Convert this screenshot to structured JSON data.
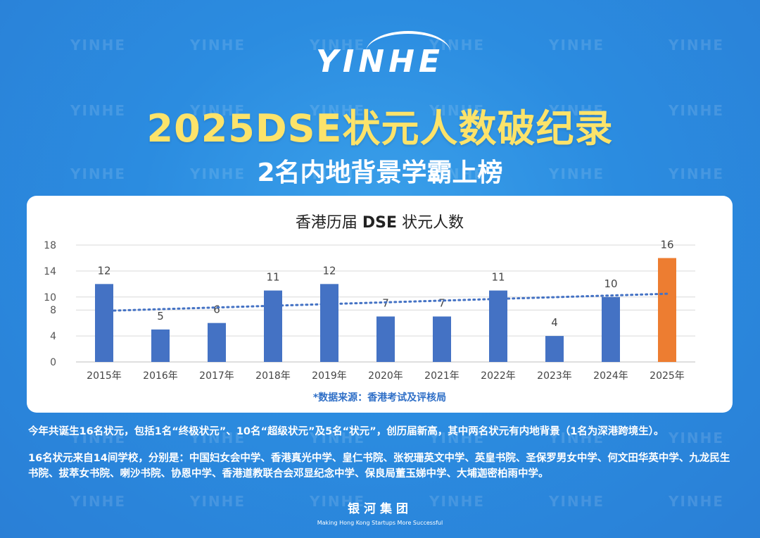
{
  "watermark": "YINHE",
  "logo": "YINHE",
  "title": "2025DSE状元人数破纪录",
  "subtitle": "2名内地背景学霸上榜",
  "chart_title_prefix": "香港历届",
  "chart_title_bold": "DSE",
  "chart_title_suffix": "状元人数",
  "source": "*数据来源：香港考试及评核局",
  "description_1": "今年共诞生16名状元，包括1名“终极状元”、10名“超级状元”及5名“状元”，创历届新高，其中两名状元有内地背景（1名为深港跨境生）。",
  "description_2": "16名状元来自14间学校，分别是：中国妇女会中学、香港真光中学、皇仁书院、张祝珊英文中学、英皇书院、圣保罗男女中学、何文田华英中学、九龙民生书院、拔萃女书院、喇沙书院、协恩中学、香港道教联合会邓显纪念中学、保良局董玉娣中学、大埔迦密柏雨中学。",
  "footer_name": "银河集团",
  "footer_slogan": "Making Hong Kong Startups More Successful",
  "colors": {
    "bar": "#4472c4",
    "bar_highlight": "#ed7d31",
    "trendline": "#4472c4",
    "title": "#fce36a",
    "background": "#2b8ce0"
  },
  "chart_data": {
    "type": "bar",
    "title": "香港历届 DSE 状元人数",
    "categories": [
      "2015年",
      "2016年",
      "2017年",
      "2018年",
      "2019年",
      "2020年",
      "2021年",
      "2022年",
      "2023年",
      "2024年",
      "2025年"
    ],
    "values": [
      12,
      5,
      6,
      11,
      12,
      7,
      7,
      11,
      4,
      10,
      16
    ],
    "data_labels": [
      "12",
      "5",
      "6",
      "11",
      "12",
      "7",
      "7",
      "11",
      "4",
      "10",
      "16"
    ],
    "highlight_index": 10,
    "ylim": [
      0,
      18
    ],
    "yticks": [
      0,
      4,
      8,
      10,
      14,
      18
    ],
    "trendline": "linear-dotted",
    "grid": true,
    "xlabel": "",
    "ylabel": ""
  }
}
